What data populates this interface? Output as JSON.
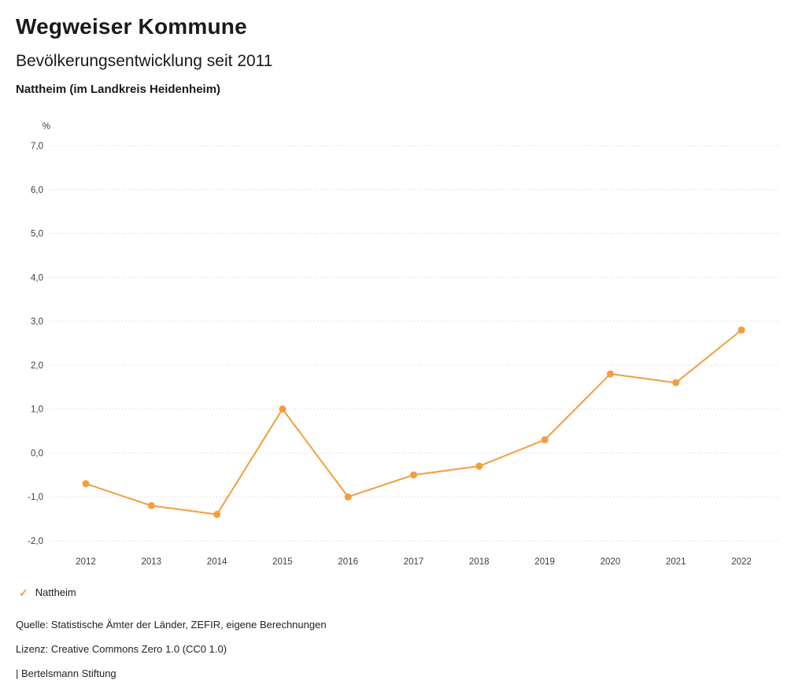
{
  "header": {
    "title": "Wegweiser Kommune",
    "subtitle": "Bevölkerungsentwicklung seit 2011",
    "region": "Nattheim (im Landkreis Heidenheim)"
  },
  "chart_data": {
    "type": "line",
    "title": "Bevölkerungsentwicklung seit 2011",
    "unit": "%",
    "categories": [
      "2012",
      "2013",
      "2014",
      "2015",
      "2016",
      "2017",
      "2018",
      "2019",
      "2020",
      "2021",
      "2022"
    ],
    "series": [
      {
        "name": "Nattheim",
        "color": "#f49d3e",
        "values": [
          -0.7,
          -1.2,
          -1.4,
          1.0,
          -1.0,
          -0.5,
          -0.3,
          0.3,
          1.8,
          1.6,
          2.8
        ]
      }
    ],
    "ylim": [
      -2.0,
      7.0
    ],
    "ytick_values": [
      7,
      6,
      5,
      4,
      3,
      2,
      1,
      0,
      -1,
      -2
    ],
    "ytick_labels": [
      "7,0",
      "6,0",
      "5,0",
      "4,0",
      "3,0",
      "2,0",
      "1,0",
      "0,0",
      "-1,0",
      "-2,0"
    ],
    "grid": "dotted-horizontal",
    "legend_position": "bottom-left"
  },
  "legend": {
    "items": [
      {
        "label": "Nattheim",
        "color": "#f49d3e",
        "icon": "checkmark-icon"
      }
    ]
  },
  "footer": {
    "source": "Quelle: Statistische Ämter der Länder, ZEFIR, eigene Berechnungen",
    "license": "Lizenz: Creative Commons Zero 1.0 (CC0 1.0)",
    "brand": "| Bertelsmann Stiftung"
  }
}
